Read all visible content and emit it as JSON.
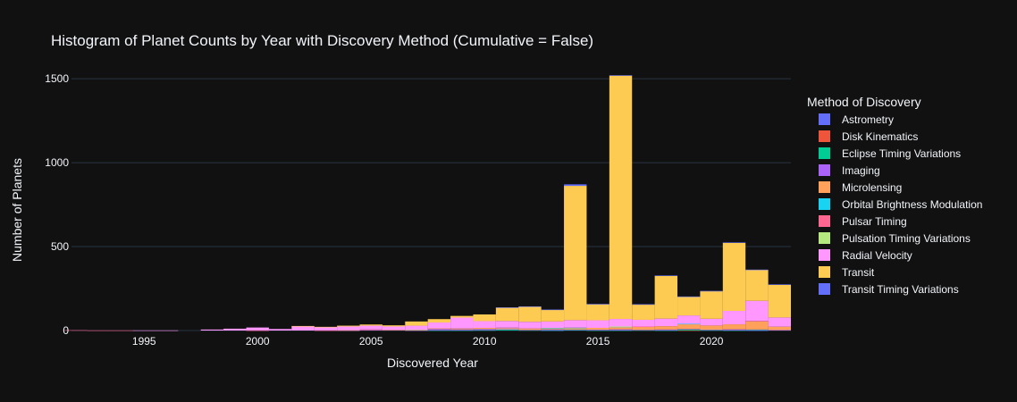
{
  "chart_data": {
    "type": "bar",
    "stacked": true,
    "title": "Histogram of Planet Counts by Year with Discovery Method (Cumulative = False)",
    "xlabel": "Discovered Year",
    "ylabel": "Number of Planets",
    "legend_title": "Method of Discovery",
    "legend_position": "right",
    "grid": true,
    "xlim": [
      1991.8,
      2023.5
    ],
    "ylim": [
      0,
      1650
    ],
    "x_ticks": [
      1995,
      2000,
      2005,
      2010,
      2015,
      2020
    ],
    "y_ticks": [
      0,
      500,
      1000,
      1500
    ],
    "x": [
      1992,
      1993,
      1994,
      1995,
      1996,
      1997,
      1998,
      1999,
      2000,
      2001,
      2002,
      2003,
      2004,
      2005,
      2006,
      2007,
      2008,
      2009,
      2010,
      2011,
      2012,
      2013,
      2014,
      2015,
      2016,
      2017,
      2018,
      2019,
      2020,
      2021,
      2022,
      2023
    ],
    "series": [
      {
        "name": "Astrometry",
        "color": "#636efa",
        "values": [
          0,
          0,
          0,
          0,
          0,
          0,
          0,
          0,
          0,
          0,
          0,
          0,
          0,
          0,
          0,
          0,
          0,
          0,
          0,
          0,
          0,
          1,
          0,
          0,
          0,
          0,
          0,
          0,
          0,
          0,
          1,
          0
        ]
      },
      {
        "name": "Disk Kinematics",
        "color": "#EF553B",
        "values": [
          0,
          0,
          0,
          0,
          0,
          0,
          0,
          0,
          0,
          0,
          0,
          0,
          0,
          0,
          0,
          0,
          0,
          0,
          0,
          0,
          0,
          0,
          0,
          0,
          0,
          0,
          0,
          1,
          0,
          0,
          0,
          0
        ]
      },
      {
        "name": "Eclipse Timing Variations",
        "color": "#00cc96",
        "values": [
          0,
          0,
          0,
          0,
          0,
          0,
          0,
          0,
          0,
          0,
          0,
          0,
          0,
          0,
          0,
          0,
          1,
          1,
          2,
          5,
          2,
          1,
          3,
          1,
          1,
          2,
          1,
          5,
          2,
          1,
          2,
          0
        ]
      },
      {
        "name": "Imaging",
        "color": "#ab63fa",
        "values": [
          0,
          0,
          0,
          0,
          0,
          0,
          0,
          0,
          0,
          0,
          0,
          0,
          1,
          4,
          3,
          1,
          8,
          6,
          7,
          3,
          2,
          5,
          3,
          4,
          6,
          2,
          5,
          3,
          3,
          6,
          3,
          3
        ]
      },
      {
        "name": "Microlensing",
        "color": "#FFA15A",
        "values": [
          0,
          0,
          0,
          0,
          0,
          0,
          0,
          0,
          0,
          0,
          0,
          0,
          1,
          2,
          1,
          2,
          4,
          5,
          7,
          6,
          8,
          8,
          10,
          11,
          15,
          19,
          20,
          30,
          25,
          30,
          50,
          20
        ]
      },
      {
        "name": "Orbital Brightness Modulation",
        "color": "#19d3f3",
        "values": [
          0,
          0,
          0,
          0,
          0,
          0,
          0,
          0,
          0,
          0,
          0,
          0,
          0,
          0,
          0,
          0,
          0,
          0,
          0,
          2,
          0,
          1,
          1,
          0,
          1,
          0,
          0,
          1,
          0,
          0,
          0,
          0
        ]
      },
      {
        "name": "Pulsar Timing",
        "color": "#FF6692",
        "values": [
          2,
          1,
          1,
          0,
          0,
          0,
          0,
          0,
          1,
          0,
          0,
          1,
          0,
          1,
          0,
          0,
          0,
          0,
          0,
          1,
          0,
          0,
          0,
          0,
          0,
          1,
          0,
          0,
          0,
          0,
          1,
          0
        ]
      },
      {
        "name": "Pulsation Timing Variations",
        "color": "#B6E880",
        "values": [
          0,
          0,
          0,
          0,
          0,
          0,
          0,
          0,
          0,
          0,
          0,
          0,
          0,
          0,
          0,
          1,
          0,
          0,
          0,
          0,
          0,
          0,
          0,
          0,
          1,
          0,
          0,
          0,
          0,
          0,
          0,
          0
        ]
      },
      {
        "name": "Radial Velocity",
        "color": "#FF97FF",
        "values": [
          0,
          0,
          0,
          1,
          1,
          0,
          6,
          11,
          17,
          9,
          26,
          20,
          22,
          22,
          20,
          25,
          35,
          65,
          40,
          40,
          40,
          38,
          45,
          45,
          45,
          40,
          45,
          50,
          40,
          80,
          120,
          55
        ]
      },
      {
        "name": "Transit",
        "color": "#FECB52",
        "values": [
          0,
          0,
          0,
          0,
          0,
          0,
          0,
          0,
          0,
          0,
          1,
          1,
          5,
          7,
          7,
          25,
          20,
          10,
          40,
          80,
          90,
          70,
          800,
          95,
          1450,
          90,
          255,
          110,
          165,
          405,
          185,
          195
        ]
      },
      {
        "name": "Transit Timing Variations",
        "color": "#636efa",
        "values": [
          0,
          0,
          0,
          0,
          0,
          0,
          0,
          0,
          0,
          0,
          0,
          0,
          0,
          0,
          0,
          0,
          0,
          0,
          0,
          1,
          2,
          1,
          9,
          3,
          2,
          3,
          2,
          3,
          1,
          3,
          1,
          2
        ]
      }
    ]
  }
}
